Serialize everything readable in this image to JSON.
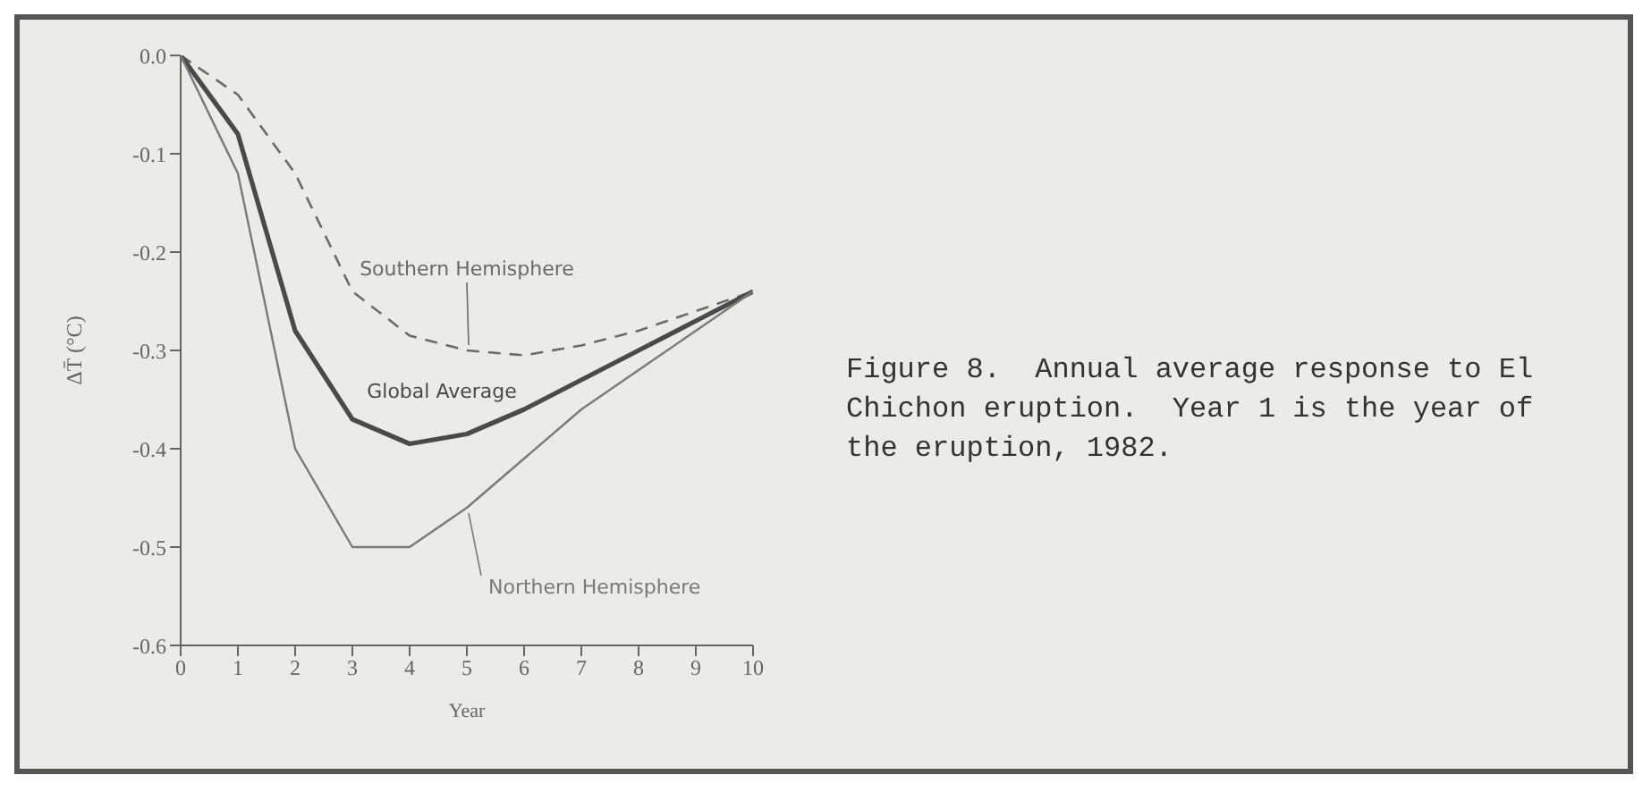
{
  "chart_data": {
    "type": "line",
    "xlabel": "Year",
    "ylabel": "ΔT̄ (°C)",
    "x": [
      0,
      1,
      2,
      3,
      4,
      5,
      6,
      7,
      8,
      9,
      10
    ],
    "series": [
      {
        "name": "Southern Hemisphere",
        "color": "#6a6a6a",
        "line_style": "dashed",
        "values": [
          0,
          -0.04,
          -0.12,
          -0.24,
          -0.285,
          -0.3,
          -0.305,
          -0.295,
          -0.28,
          -0.26,
          -0.24
        ]
      },
      {
        "name": "Global Average",
        "color": "#4a4a4a",
        "line_style": "solid",
        "values": [
          0,
          -0.08,
          -0.28,
          -0.37,
          -0.395,
          -0.385,
          -0.36,
          -0.33,
          -0.3,
          -0.27,
          -0.24
        ]
      },
      {
        "name": "Northern Hemisphere",
        "color": "#7a7a7a",
        "line_style": "solid",
        "values": [
          0,
          -0.12,
          -0.4,
          -0.5,
          -0.5,
          -0.46,
          -0.41,
          -0.36,
          -0.32,
          -0.28,
          -0.24
        ]
      }
    ],
    "xlim": [
      0,
      10
    ],
    "xticks": [
      0,
      1,
      2,
      3,
      4,
      5,
      6,
      7,
      8,
      9,
      10
    ],
    "ylim": [
      -0.6,
      0
    ],
    "yticks": [
      {
        "value": 0,
        "label": "0.0"
      },
      -0.1,
      -0.2,
      -0.3,
      -0.4,
      -0.5,
      -0.6
    ],
    "grid": false,
    "legend": false,
    "marker": "none",
    "annotations": [
      "Figure 8.  Annual average response to El Chichon eruption.  Year 1 is the year of the eruption, 1982."
    ]
  }
}
